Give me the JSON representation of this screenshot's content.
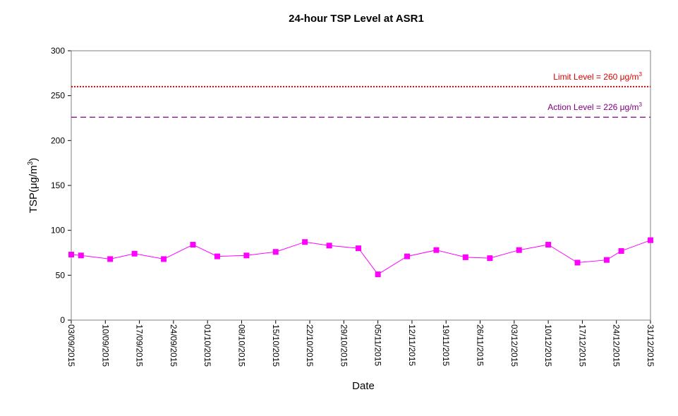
{
  "chart_data": {
    "type": "line",
    "title": "24-hour TSP Level at ASR1",
    "xlabel": "Date",
    "ylabel": "TSP(μg/m3)",
    "ylabel_parts": {
      "main": "TSP(μg/m",
      "sup": "3",
      "close": ")"
    },
    "ylim": [
      0,
      300
    ],
    "yticks": [
      0,
      50,
      100,
      150,
      200,
      250,
      300
    ],
    "xlim": [
      "03/09/2015",
      "31/12/2015"
    ],
    "xtick_labels": [
      "03/09/2015",
      "10/09/2015",
      "17/09/2015",
      "24/09/2015",
      "01/10/2015",
      "08/10/2015",
      "15/10/2015",
      "22/10/2015",
      "29/10/2015",
      "05/11/2015",
      "12/11/2015",
      "19/11/2015",
      "26/11/2015",
      "03/12/2015",
      "10/12/2015",
      "17/12/2015",
      "24/12/2015",
      "31/12/2015"
    ],
    "grid": false,
    "series": [
      {
        "color": "#ff00ff",
        "x": [
          "03/09/2015",
          "05/09/2015",
          "11/09/2015",
          "16/09/2015",
          "22/09/2015",
          "28/09/2015",
          "03/10/2015",
          "09/10/2015",
          "15/10/2015",
          "21/10/2015",
          "26/10/2015",
          "01/11/2015",
          "05/11/2015",
          "11/11/2015",
          "17/11/2015",
          "23/11/2015",
          "28/11/2015",
          "04/12/2015",
          "10/12/2015",
          "16/12/2015",
          "22/12/2015",
          "25/12/2015",
          "31/12/2015"
        ],
        "values": [
          73,
          72,
          68,
          74,
          68,
          84,
          71,
          72,
          76,
          87,
          83,
          80,
          51,
          71,
          78,
          70,
          69,
          78,
          84,
          64,
          67,
          77,
          89
        ]
      }
    ],
    "reference_lines": [
      {
        "label_main": "Limit Level  = 260 μg/m",
        "label_sup": "3",
        "value": 260,
        "color": "#dd0000",
        "style": "dotted"
      },
      {
        "label_main": "Action Level  = 226 μg/m",
        "label_sup": "3",
        "value": 226,
        "color": "#800080",
        "style": "dashed"
      }
    ]
  }
}
